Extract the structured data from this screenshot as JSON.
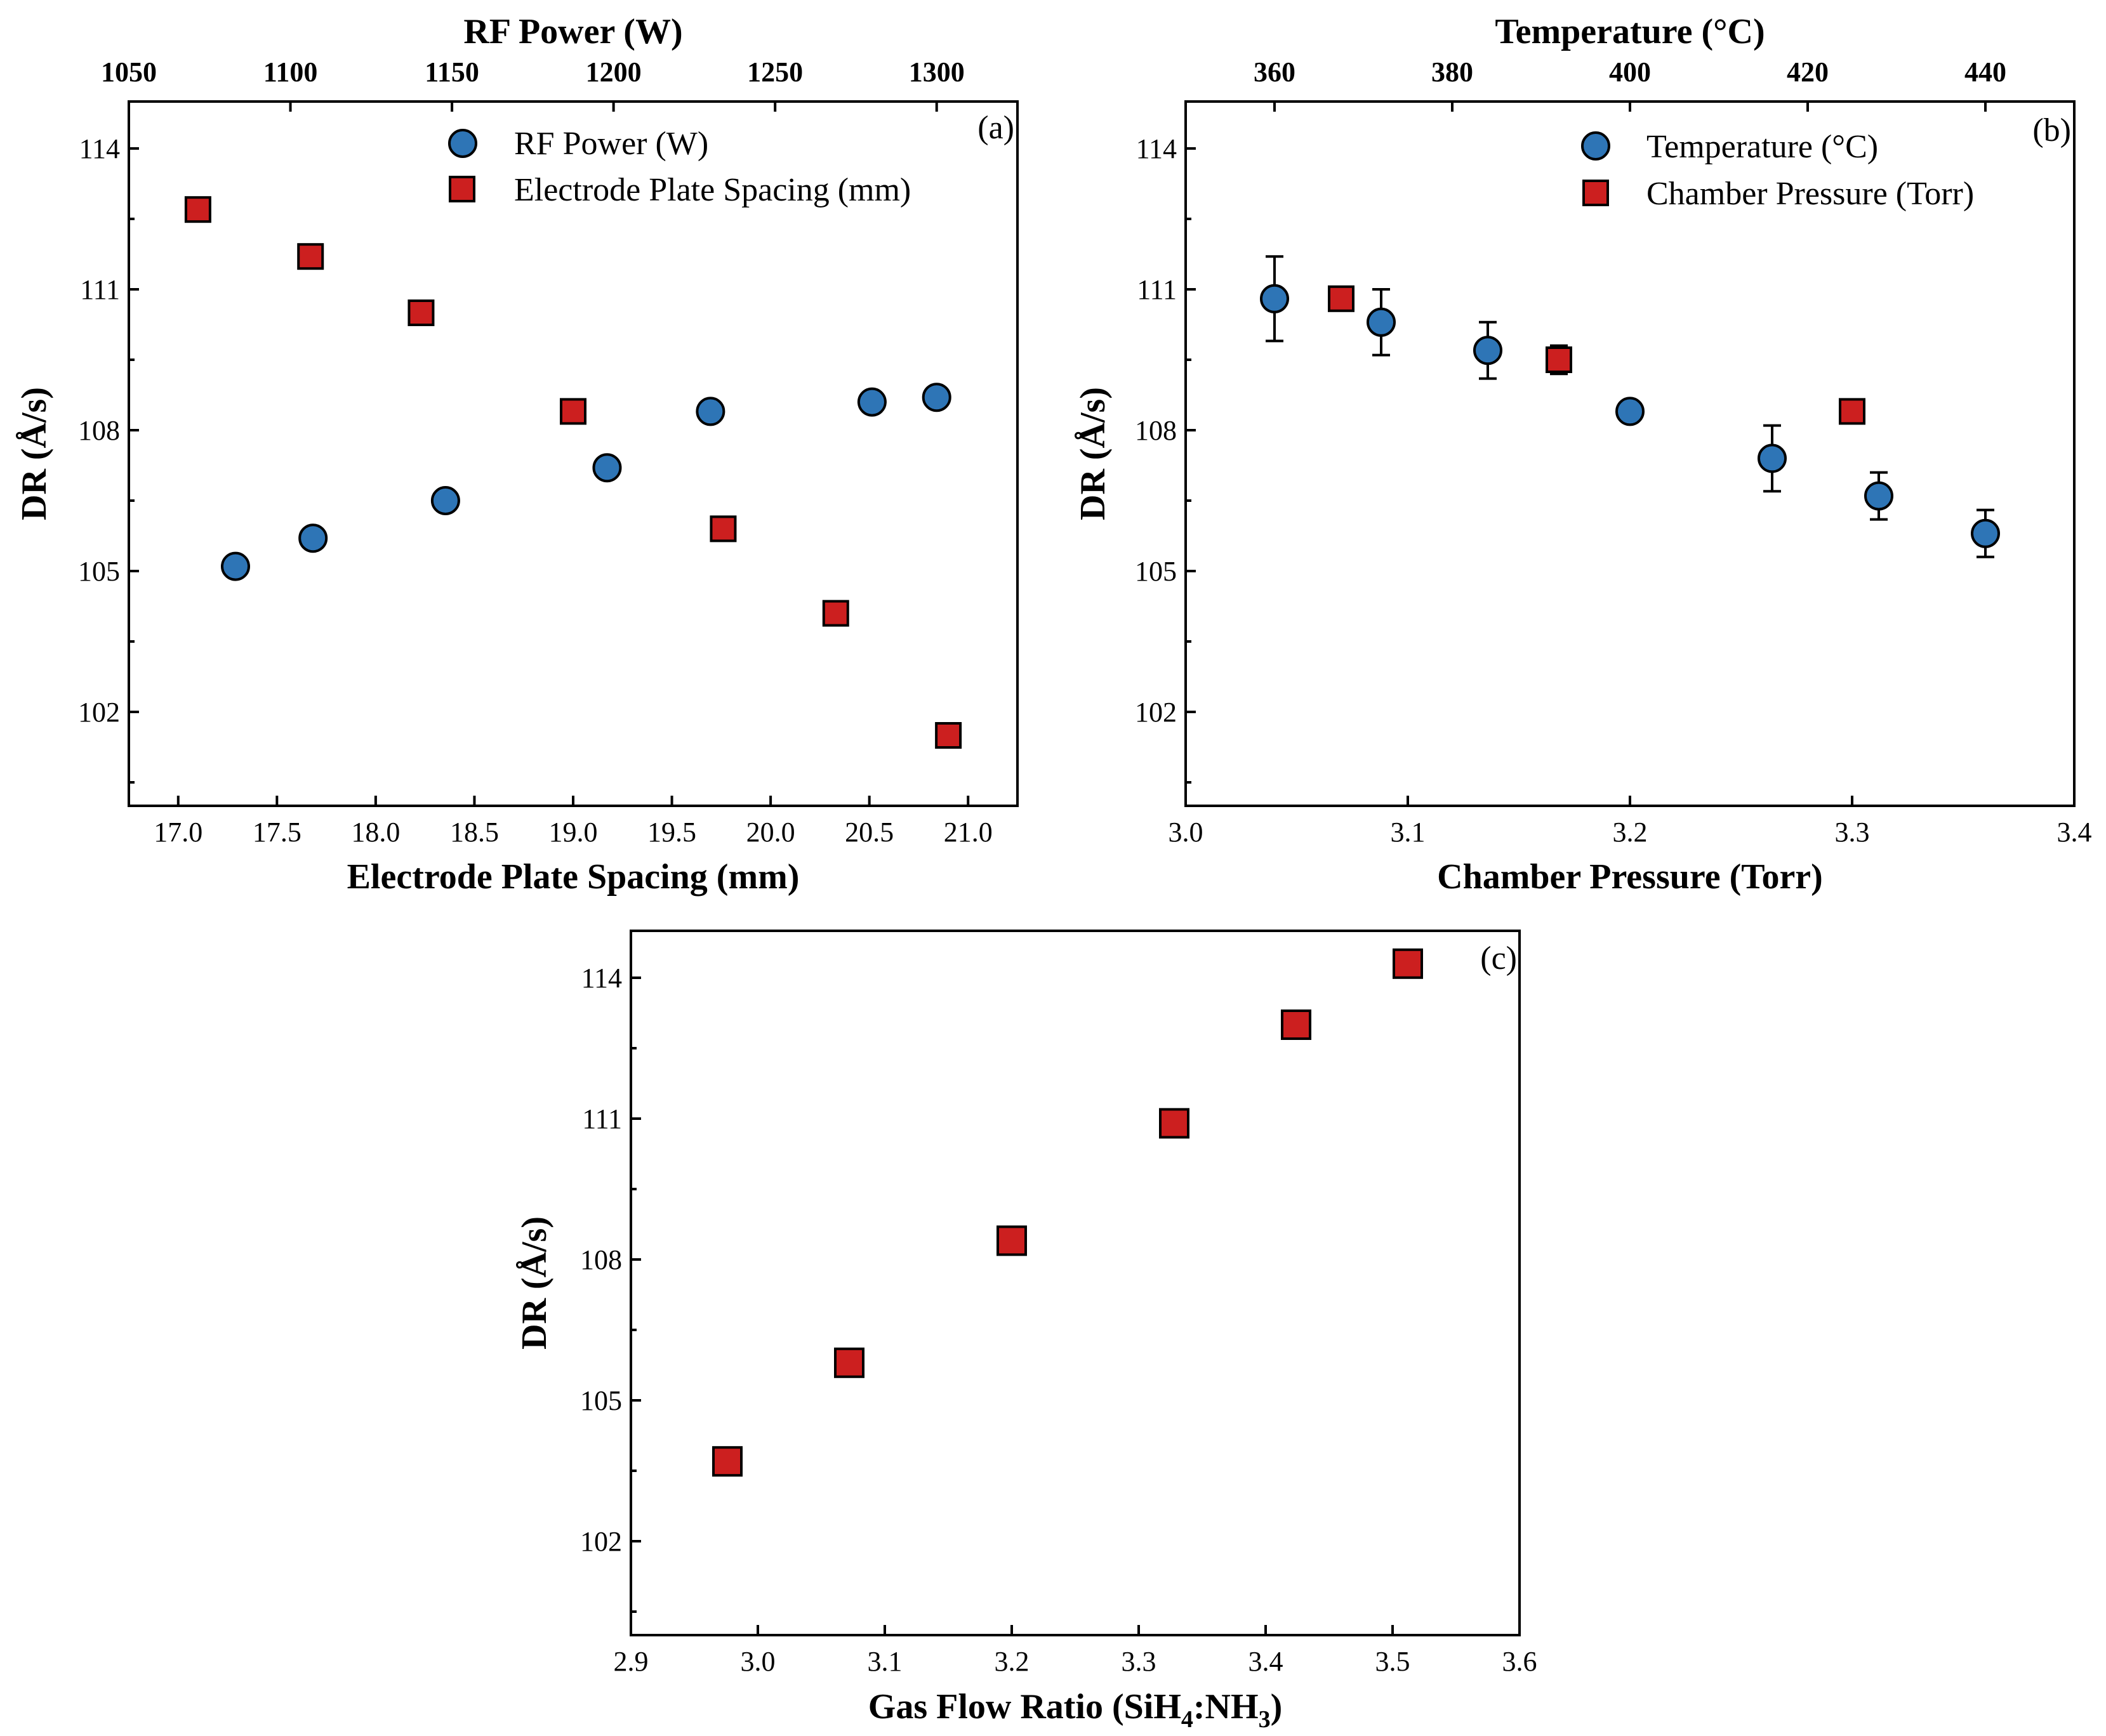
{
  "chart_data": [
    {
      "panel": "(a)",
      "type": "scatter",
      "ylabel": "DR (Å/s)",
      "ylim": [
        100,
        115
      ],
      "yticks": [
        102,
        105,
        108,
        111,
        114
      ],
      "bottom_axis": {
        "label": "Electrode Plate Spacing (mm)",
        "lim": [
          16.75,
          21.25
        ],
        "ticks": [
          "17.0",
          "17.5",
          "18.0",
          "18.5",
          "19.0",
          "19.5",
          "20.0",
          "20.5",
          "21.0"
        ]
      },
      "top_axis": {
        "label": "RF Power (W)",
        "lim": [
          1050,
          1325
        ],
        "ticks": [
          "1050",
          "1100",
          "1150",
          "1200",
          "1250",
          "1300"
        ]
      },
      "series": [
        {
          "name": "RF Power (W)",
          "marker": "circle",
          "color": "#2e75b6",
          "axis": "top",
          "x": [
            1083,
            1107,
            1148,
            1198,
            1230,
            1280,
            1300
          ],
          "y": [
            105.1,
            105.7,
            106.5,
            107.2,
            108.4,
            108.6,
            108.7
          ]
        },
        {
          "name": "Electrode Plate Spacing (mm)",
          "marker": "square",
          "color": "#cc1f1f",
          "axis": "bottom",
          "x": [
            17.1,
            17.67,
            18.23,
            19.0,
            19.76,
            20.33,
            20.9
          ],
          "y": [
            112.7,
            111.7,
            110.5,
            108.4,
            105.9,
            104.1,
            101.5
          ]
        }
      ]
    },
    {
      "panel": "(b)",
      "type": "scatter",
      "ylabel": "DR (Å/s)",
      "ylim": [
        100,
        115
      ],
      "yticks": [
        102,
        105,
        108,
        111,
        114
      ],
      "bottom_axis": {
        "label": "Chamber Pressure (Torr)",
        "lim": [
          3.0,
          3.4
        ],
        "ticks": [
          "3.0",
          "3.1",
          "3.2",
          "3.3",
          "3.4"
        ]
      },
      "top_axis": {
        "label": "Temperature (°C)",
        "lim": [
          350,
          450
        ],
        "ticks": [
          "360",
          "380",
          "400",
          "420",
          "440"
        ]
      },
      "series": [
        {
          "name": "Temperature (°C)",
          "marker": "circle",
          "color": "#2e75b6",
          "axis": "top",
          "x": [
            360,
            372,
            384,
            400,
            416,
            428,
            440
          ],
          "y": [
            110.8,
            110.3,
            109.7,
            108.4,
            107.4,
            106.6,
            105.8
          ],
          "yerr": [
            0.9,
            0.7,
            0.6,
            0.0,
            0.7,
            0.5,
            0.5
          ]
        },
        {
          "name": "Chamber Pressure (Torr)",
          "marker": "square",
          "color": "#cc1f1f",
          "axis": "bottom",
          "x": [
            3.07,
            3.168,
            3.3
          ],
          "y": [
            110.8,
            109.5,
            108.4
          ],
          "yerr": [
            0.0,
            0.3,
            0.0
          ]
        }
      ]
    },
    {
      "panel": "(c)",
      "type": "scatter",
      "ylabel": "DR (Å/s)",
      "ylim": [
        100,
        115
      ],
      "yticks": [
        102,
        105,
        108,
        111,
        114
      ],
      "bottom_axis": {
        "label": "Gas Flow Ratio (SiH4:NH3)",
        "lim": [
          2.9,
          3.6
        ],
        "ticks": [
          "2.9",
          "3.0",
          "3.1",
          "3.2",
          "3.3",
          "3.4",
          "3.5",
          "3.6"
        ]
      },
      "series": [
        {
          "name": "Gas Flow Ratio",
          "marker": "square",
          "color": "#cc1f1f",
          "axis": "bottom",
          "x": [
            2.976,
            3.072,
            3.2,
            3.328,
            3.424,
            3.512
          ],
          "y": [
            103.7,
            105.8,
            108.4,
            110.9,
            113.0,
            114.3
          ]
        }
      ]
    }
  ],
  "labels": {
    "a_tag": "(a)",
    "b_tag": "(b)",
    "c_tag": "(c)",
    "a_top_title": "RF Power (W)",
    "a_bottom_title": "Electrode Plate Spacing (mm)",
    "a_ylabel": "DR (Å/s)",
    "a_legend_circle": "RF Power (W)",
    "a_legend_square": "Electrode Plate Spacing (mm)",
    "b_top_title": "Temperature (°C)",
    "b_bottom_title": "Chamber Pressure (Torr)",
    "b_ylabel": "DR (Å/s)",
    "b_legend_circle": "Temperature (°C)",
    "b_legend_square": "Chamber Pressure (Torr)",
    "c_bottom_title_prefix": "Gas Flow Ratio (SiH",
    "c_sub4": "4",
    "c_colon": ":NH",
    "c_sub3": "3",
    "c_close": ")",
    "c_ylabel": "DR (Å/s)"
  }
}
